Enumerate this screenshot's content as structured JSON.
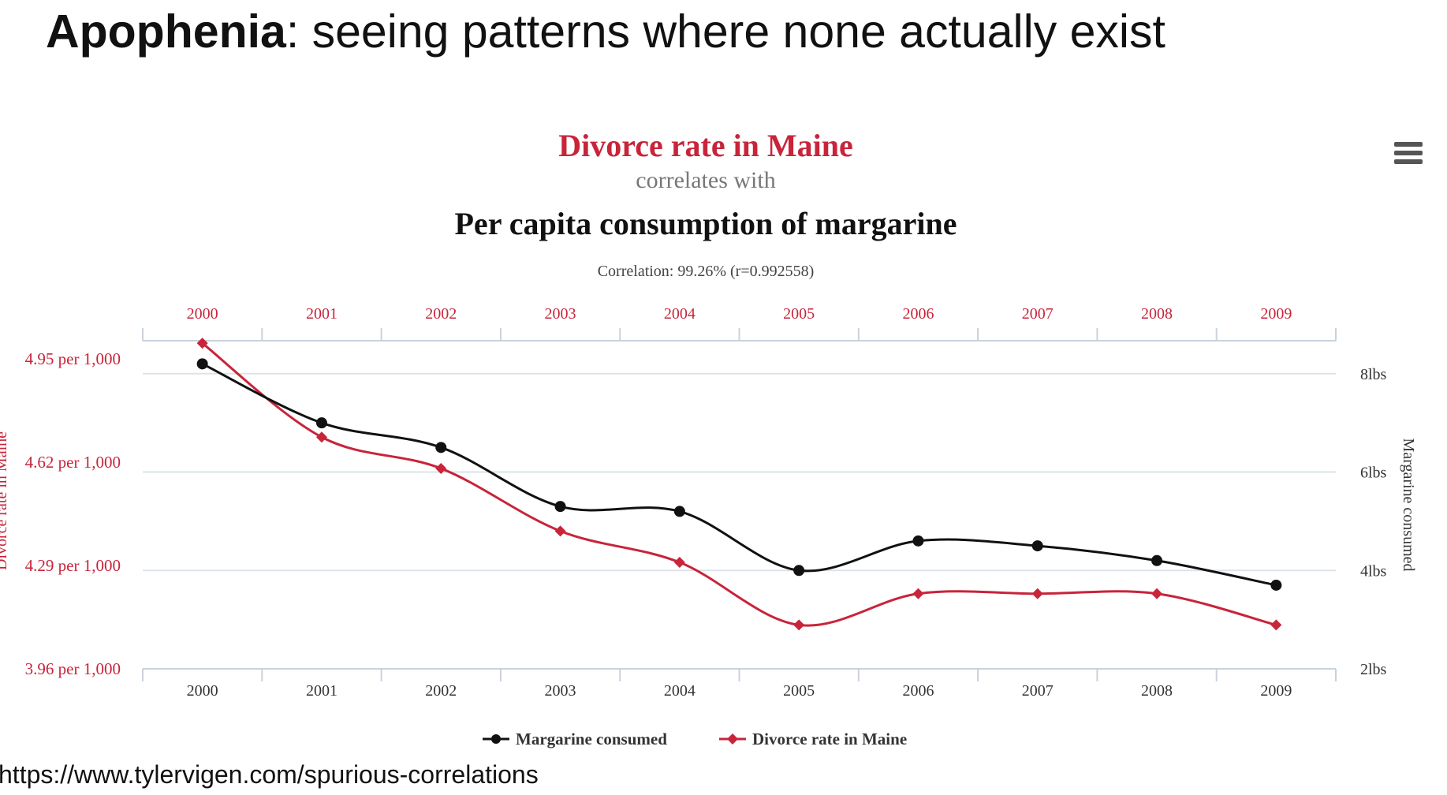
{
  "heading": {
    "term": "Apophenia",
    "definition": ": seeing patterns where none actually exist"
  },
  "source_url": "https://www.tylervigen.com/spurious-correlations",
  "menu": {
    "icon": "hamburger-menu-icon"
  },
  "colors": {
    "red": "#c8243a",
    "black": "#111111",
    "grid": "#dde3ea",
    "axis": "#c9d2dc"
  },
  "chart_data": {
    "type": "line",
    "title": "Divorce rate in Maine",
    "subtitle": "correlates with",
    "title2": "Per capita consumption of margarine",
    "correlation_label": "Correlation: 99.26% (r=0.992558)",
    "x": [
      "2000",
      "2001",
      "2002",
      "2003",
      "2004",
      "2005",
      "2006",
      "2007",
      "2008",
      "2009"
    ],
    "left_axis": {
      "label": "Divorce rate in Maine",
      "ticks": [
        {
          "value": 3.96,
          "label": "3.96 per 1,000"
        },
        {
          "value": 4.29,
          "label": "4.29 per 1,000"
        },
        {
          "value": 4.62,
          "label": "4.62 per 1,000"
        },
        {
          "value": 4.95,
          "label": "4.95 per 1,000"
        }
      ],
      "range": [
        3.96,
        4.95
      ]
    },
    "right_axis": {
      "label": "Margarine consumed",
      "ticks": [
        {
          "value": 2,
          "label": "2lbs"
        },
        {
          "value": 4,
          "label": "4lbs"
        },
        {
          "value": 6,
          "label": "6lbs"
        },
        {
          "value": 8,
          "label": "8lbs"
        }
      ],
      "range": [
        2,
        8.67
      ]
    },
    "series": [
      {
        "name": "Margarine consumed",
        "axis": "right",
        "color": "#111111",
        "marker": "circle",
        "values": [
          8.2,
          7.0,
          6.5,
          5.3,
          5.2,
          4.0,
          4.6,
          4.5,
          4.2,
          3.7
        ]
      },
      {
        "name": "Divorce rate in Maine",
        "axis": "left",
        "color": "#c8243a",
        "marker": "diamond",
        "values": [
          5.0,
          4.7,
          4.6,
          4.4,
          4.3,
          4.1,
          4.2,
          4.2,
          4.2,
          4.1
        ]
      }
    ],
    "legend_position": "bottom-center",
    "grid": true
  }
}
